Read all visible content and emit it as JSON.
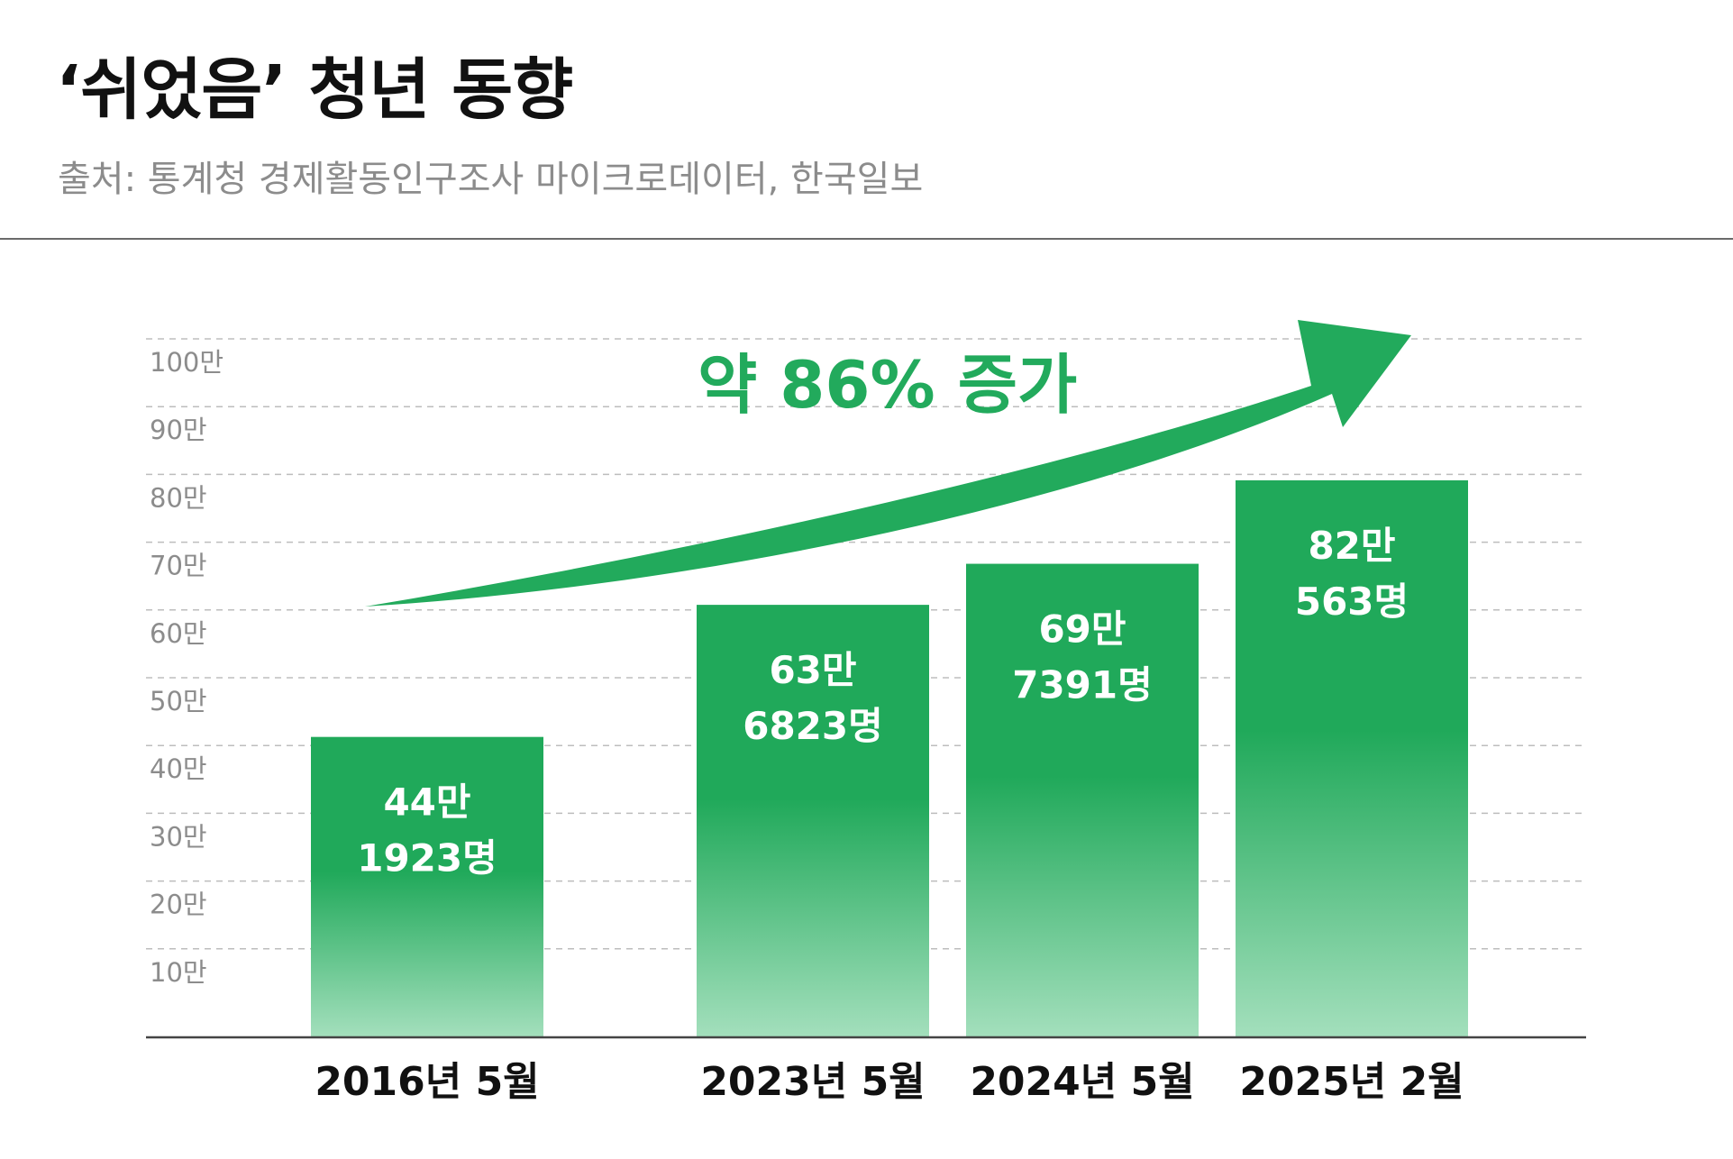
{
  "header": {
    "title": "‘쉬었음’ 청년 동향",
    "source": "출처: 통계청 경제활동인구조사 마이크로데이터, 한국일보"
  },
  "colors": {
    "bar_top": "#20a95a",
    "bar_bottom": "#a3dfbc",
    "arrow": "#22aa5c",
    "grid": "#bdbdbd",
    "axis": "#444444"
  },
  "chart_data": {
    "type": "bar",
    "categories": [
      "2016년 5월",
      "2023년 5월",
      "2024년 5월",
      "2025년 2월"
    ],
    "values": [
      441923,
      636823,
      697391,
      820563
    ],
    "data_labels": [
      [
        "44만",
        "1923명"
      ],
      [
        "63만",
        "6823명"
      ],
      [
        "69만",
        "7391명"
      ],
      [
        "82만",
        "563명"
      ]
    ],
    "ylim": [
      0,
      1000000
    ],
    "yticks": [
      {
        "value": 100000,
        "label": "10만"
      },
      {
        "value": 200000,
        "label": "20만"
      },
      {
        "value": 300000,
        "label": "30만"
      },
      {
        "value": 400000,
        "label": "40만"
      },
      {
        "value": 500000,
        "label": "50만"
      },
      {
        "value": 600000,
        "label": "60만"
      },
      {
        "value": 700000,
        "label": "70만"
      },
      {
        "value": 800000,
        "label": "80만"
      },
      {
        "value": 900000,
        "label": "90만"
      },
      {
        "value": 1000000,
        "label": "100만"
      }
    ],
    "annotation": "약 86% 증가",
    "grid": true,
    "xlabel": "",
    "ylabel": ""
  }
}
